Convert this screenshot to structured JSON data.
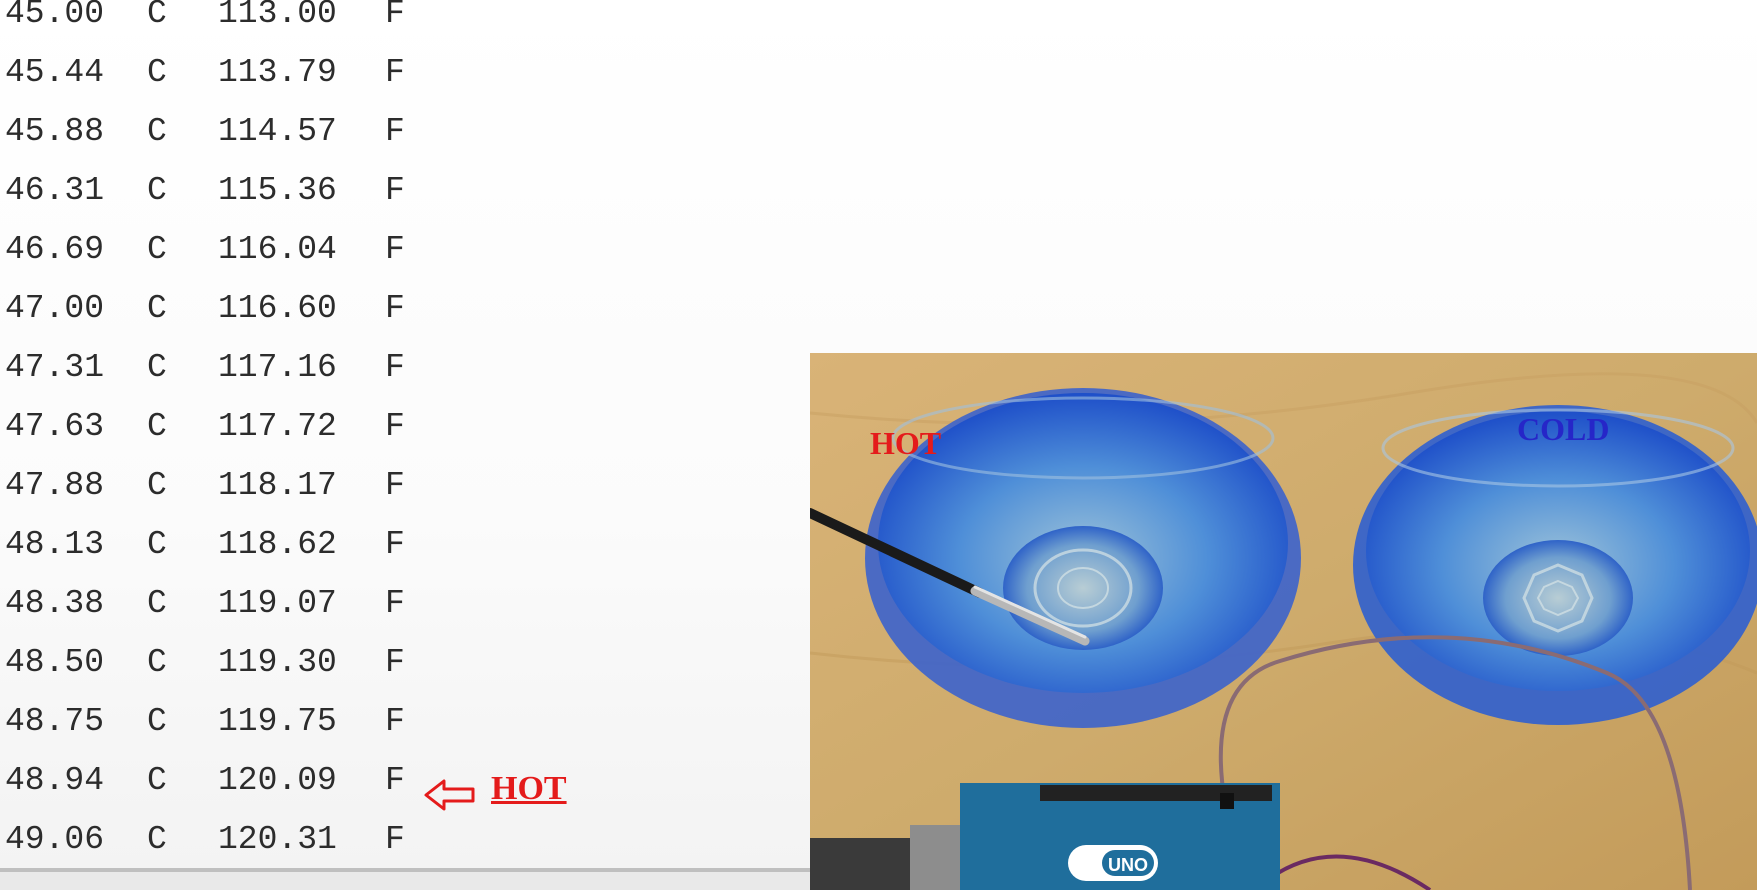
{
  "serial_monitor": {
    "readings": [
      {
        "celsius": "45.00",
        "c_unit": "C",
        "fahrenheit": "113.00",
        "f_unit": "F"
      },
      {
        "celsius": "45.44",
        "c_unit": "C",
        "fahrenheit": "113.79",
        "f_unit": "F"
      },
      {
        "celsius": "45.88",
        "c_unit": "C",
        "fahrenheit": "114.57",
        "f_unit": "F"
      },
      {
        "celsius": "46.31",
        "c_unit": "C",
        "fahrenheit": "115.36",
        "f_unit": "F"
      },
      {
        "celsius": "46.69",
        "c_unit": "C",
        "fahrenheit": "116.04",
        "f_unit": "F"
      },
      {
        "celsius": "47.00",
        "c_unit": "C",
        "fahrenheit": "116.60",
        "f_unit": "F"
      },
      {
        "celsius": "47.31",
        "c_unit": "C",
        "fahrenheit": "117.16",
        "f_unit": "F"
      },
      {
        "celsius": "47.63",
        "c_unit": "C",
        "fahrenheit": "117.72",
        "f_unit": "F"
      },
      {
        "celsius": "47.88",
        "c_unit": "C",
        "fahrenheit": "118.17",
        "f_unit": "F"
      },
      {
        "celsius": "48.13",
        "c_unit": "C",
        "fahrenheit": "118.62",
        "f_unit": "F"
      },
      {
        "celsius": "48.38",
        "c_unit": "C",
        "fahrenheit": "119.07",
        "f_unit": "F"
      },
      {
        "celsius": "48.50",
        "c_unit": "C",
        "fahrenheit": "119.30",
        "f_unit": "F"
      },
      {
        "celsius": "48.75",
        "c_unit": "C",
        "fahrenheit": "119.75",
        "f_unit": "F"
      },
      {
        "celsius": "48.94",
        "c_unit": "C",
        "fahrenheit": "120.09",
        "f_unit": "F"
      },
      {
        "celsius": "49.06",
        "c_unit": "C",
        "fahrenheit": "120.31",
        "f_unit": "F"
      }
    ],
    "hot_annotation": "HOT",
    "annotation_color": "#e41b1b"
  },
  "photo": {
    "label_hot": "HOT",
    "label_cold": "COLD",
    "hot_color": "#e41b1b",
    "cold_color": "#2626c8",
    "board_badge": "UNO",
    "icons": [
      "temperature-probe-icon",
      "glass-bowl-icon",
      "arduino-board-icon"
    ]
  }
}
